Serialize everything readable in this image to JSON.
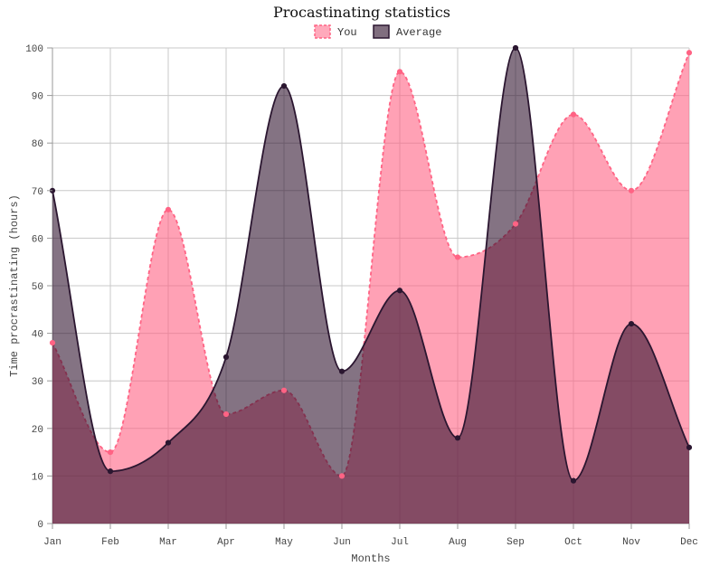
{
  "chart_data": {
    "type": "area",
    "title": "Procastinating statistics",
    "xlabel": "Months",
    "ylabel": "Time procrastinating (hours)",
    "categories": [
      "Jan",
      "Feb",
      "Mar",
      "Apr",
      "May",
      "Jun",
      "Jul",
      "Aug",
      "Sep",
      "Oct",
      "Nov",
      "Dec"
    ],
    "ylim": [
      0,
      100
    ],
    "yticks": [
      "0",
      "10",
      "20",
      "30",
      "40",
      "50",
      "60",
      "70",
      "80",
      "90",
      "100"
    ],
    "grid": true,
    "legend_position": "top-center",
    "series": [
      {
        "name": "You",
        "values": [
          38,
          15,
          66,
          23,
          28,
          10,
          95,
          56,
          63,
          86,
          70,
          99
        ],
        "fill": "#ff6384",
        "stroke": "#ff6384",
        "dashed": true
      },
      {
        "name": "Average",
        "values": [
          70,
          11,
          17,
          35,
          92,
          32,
          49,
          18,
          100,
          9,
          42,
          16
        ],
        "fill": "#2b0d2a",
        "stroke": "#2b1630",
        "dashed": false
      }
    ]
  }
}
